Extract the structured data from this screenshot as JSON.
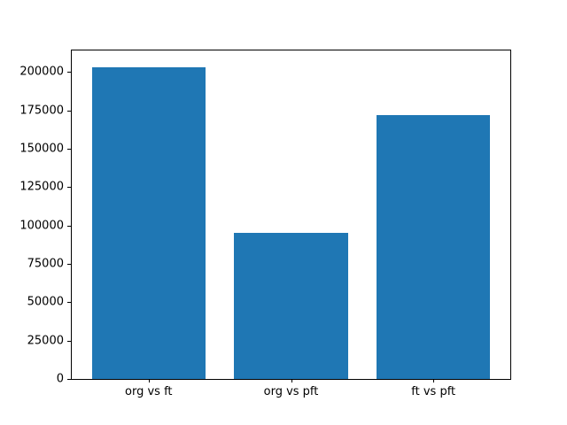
{
  "chart_data": {
    "type": "bar",
    "categories": [
      "org vs ft",
      "org vs pft",
      "ft vs pft"
    ],
    "values": [
      203000,
      95000,
      172000
    ],
    "title": "",
    "xlabel": "",
    "ylabel": "",
    "yticks": [
      0,
      25000,
      50000,
      75000,
      100000,
      125000,
      150000,
      175000,
      200000
    ],
    "ylim": [
      0,
      214000
    ],
    "xlim": [
      -0.54,
      2.54
    ],
    "bar_width": 0.8,
    "bar_color": "#1f77b4",
    "background_color": "#ffffff",
    "spine_color": "#000000",
    "tick_label_color": "#000000",
    "grid": false,
    "legend": null
  }
}
